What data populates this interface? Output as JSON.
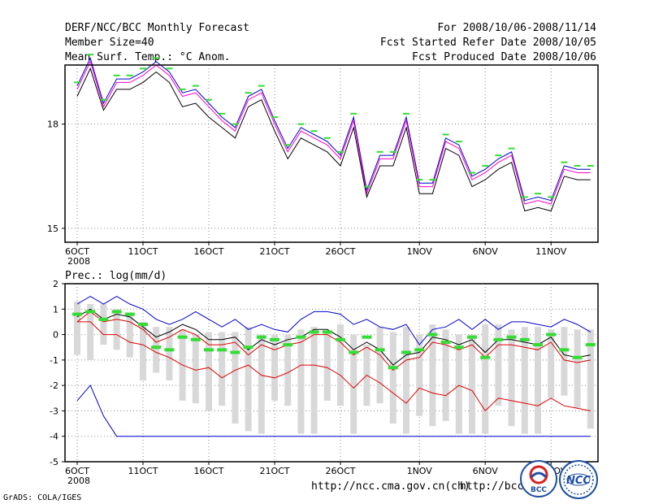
{
  "header": {
    "title": "DERF/NCC/BCC Monthly Forecast",
    "member_size": "Member Size=40",
    "variable": "Mean Surf. Temp.: °C Anom.",
    "period": "For 2008/10/06-2008/11/14",
    "started": "Fcst Started Refer Date 2008/10/05",
    "produced": "Fcst Produced Date 2008/10/06"
  },
  "footer": {
    "url1": "http://ncc.cma.gov.cn(ch)",
    "url2": "http://bcc.c",
    "grads": "GrADS: COLA/IGES",
    "logo_bcc": "BCC",
    "logo_ncc": "NCC"
  },
  "colors": {
    "frame": "#000000",
    "grid": "#888888",
    "green": "#33dd33",
    "red": "#dd0000",
    "blue": "#0000cc",
    "magenta": "#ff00cc",
    "gray": "#d8d8d8"
  },
  "chart_data": [
    {
      "type": "line",
      "title": "Mean Surf. Temp.: °C Anom.",
      "x_tick_labels": [
        "6OCT",
        "11OCT",
        "16OCT",
        "21OCT",
        "26OCT",
        "1NOV",
        "6NOV",
        "11NOV"
      ],
      "x_tick_sublabel": "2008",
      "y_tick_labels": [
        "18",
        "15"
      ],
      "ylim": [
        14.6,
        19.7
      ],
      "x": [
        1,
        2,
        3,
        4,
        5,
        6,
        7,
        8,
        9,
        10,
        11,
        12,
        13,
        14,
        15,
        16,
        17,
        18,
        19,
        20,
        21,
        22,
        23,
        24,
        25,
        26,
        27,
        28,
        29,
        30,
        31,
        32,
        33,
        34,
        35,
        36,
        37,
        38,
        39,
        40
      ],
      "series": [
        {
          "name": "upper",
          "color": "#0000cc",
          "values": [
            19.1,
            19.9,
            18.6,
            19.3,
            19.3,
            19.5,
            19.8,
            19.5,
            18.9,
            19.0,
            18.6,
            18.2,
            17.9,
            18.8,
            19.0,
            18.1,
            17.3,
            17.9,
            17.7,
            17.5,
            17.1,
            18.2,
            16.1,
            17.1,
            17.1,
            18.2,
            16.3,
            16.3,
            17.6,
            17.4,
            16.5,
            16.7,
            17.0,
            17.2,
            15.8,
            15.9,
            15.8,
            16.8,
            16.7,
            16.7
          ]
        },
        {
          "name": "mean",
          "color": "#ff00cc",
          "values": [
            19.0,
            19.8,
            18.5,
            19.2,
            19.2,
            19.4,
            19.7,
            19.4,
            18.8,
            18.9,
            18.5,
            18.1,
            17.8,
            18.7,
            18.9,
            18.0,
            17.2,
            17.8,
            17.6,
            17.4,
            17.0,
            18.1,
            16.0,
            17.0,
            17.0,
            18.1,
            16.2,
            16.2,
            17.5,
            17.3,
            16.4,
            16.6,
            16.9,
            17.1,
            15.7,
            15.8,
            15.7,
            16.7,
            16.6,
            16.6
          ]
        },
        {
          "name": "lower",
          "color": "#000000",
          "values": [
            18.8,
            19.6,
            18.4,
            19.0,
            19.0,
            19.2,
            19.5,
            19.2,
            18.5,
            18.6,
            18.2,
            17.9,
            17.6,
            18.5,
            18.7,
            17.8,
            17.0,
            17.6,
            17.4,
            17.2,
            16.8,
            17.9,
            15.9,
            16.8,
            16.8,
            17.9,
            16.0,
            16.0,
            17.3,
            17.1,
            16.2,
            16.4,
            16.7,
            16.9,
            15.5,
            15.6,
            15.5,
            16.5,
            16.4,
            16.4
          ]
        }
      ],
      "markers": {
        "name": "observed",
        "color": "#33dd33",
        "values": [
          19.2,
          20.0,
          18.7,
          19.4,
          19.4,
          19.6,
          19.9,
          19.6,
          19.0,
          19.1,
          18.7,
          18.3,
          18.0,
          18.9,
          19.1,
          18.2,
          17.4,
          18.0,
          17.8,
          17.6,
          17.2,
          18.3,
          16.2,
          17.2,
          17.2,
          18.3,
          16.4,
          16.4,
          17.7,
          17.5,
          16.6,
          16.8,
          17.1,
          17.3,
          15.9,
          16.0,
          15.9,
          16.9,
          16.8,
          16.8
        ]
      }
    },
    {
      "type": "line",
      "title": "Prec.: log(mm/d)",
      "x_tick_labels": [
        "6OCT",
        "11OCT",
        "16OCT",
        "21OCT",
        "26OCT",
        "1NOV",
        "6NOV",
        "11NOV"
      ],
      "x_tick_sublabel": "2008",
      "y_tick_labels": [
        "2",
        "1",
        "0",
        "-1",
        "-2",
        "-3",
        "-4",
        "-5"
      ],
      "ylim": [
        -5,
        2
      ],
      "x": [
        1,
        2,
        3,
        4,
        5,
        6,
        7,
        8,
        9,
        10,
        11,
        12,
        13,
        14,
        15,
        16,
        17,
        18,
        19,
        20,
        21,
        22,
        23,
        24,
        25,
        26,
        27,
        28,
        29,
        30,
        31,
        32,
        33,
        34,
        35,
        36,
        37,
        38,
        39,
        40
      ],
      "series": [
        {
          "name": "max",
          "color": "#0000cc",
          "values": [
            1.2,
            1.5,
            1.2,
            1.5,
            1.2,
            1.0,
            0.6,
            0.4,
            0.6,
            0.9,
            0.6,
            0.3,
            0.6,
            0.2,
            0.4,
            0.2,
            0.1,
            0.6,
            0.9,
            0.9,
            0.8,
            0.4,
            0.6,
            0.3,
            0.2,
            0.4,
            -0.4,
            0.2,
            0.3,
            0.6,
            0.2,
            0.6,
            0.2,
            0.5,
            0.5,
            0.4,
            0.3,
            0.6,
            0.4,
            0.1
          ]
        },
        {
          "name": "mean",
          "color": "#000000",
          "values": [
            0.7,
            1.0,
            0.6,
            0.8,
            0.7,
            0.3,
            -0.1,
            0.1,
            0.4,
            0.2,
            -0.2,
            -0.2,
            -0.1,
            -0.6,
            -0.2,
            -0.4,
            -0.2,
            -0.1,
            0.2,
            0.2,
            -0.1,
            -0.6,
            -0.3,
            -0.6,
            -1.2,
            -0.8,
            -0.7,
            -0.1,
            -0.2,
            -0.4,
            -0.2,
            -0.7,
            -0.2,
            -0.2,
            -0.3,
            -0.4,
            -0.1,
            -0.8,
            -0.9,
            -0.8
          ]
        },
        {
          "name": "mean_sd",
          "color": "#dd0000",
          "values": [
            0.5,
            0.9,
            0.5,
            0.6,
            0.5,
            0.2,
            -0.3,
            -0.1,
            0.2,
            0.0,
            -0.4,
            -0.4,
            -0.3,
            -0.8,
            -0.4,
            -0.6,
            -0.4,
            -0.3,
            0.0,
            0.0,
            -0.3,
            -0.8,
            -0.5,
            -0.8,
            -1.4,
            -1.0,
            -0.9,
            -0.3,
            -0.4,
            -0.6,
            -0.4,
            -0.9,
            -0.4,
            -0.4,
            -0.5,
            -0.6,
            -0.3,
            -1.0,
            -1.1,
            -1.0
          ]
        },
        {
          "name": "lower",
          "color": "#dd0000",
          "values": [
            0.5,
            0.5,
            0.0,
            0.0,
            -0.3,
            -0.4,
            -0.7,
            -0.9,
            -1.2,
            -1.4,
            -1.3,
            -1.7,
            -1.4,
            -1.2,
            -1.6,
            -1.7,
            -1.5,
            -1.2,
            -1.2,
            -1.3,
            -1.6,
            -2.1,
            -1.6,
            -1.9,
            -2.3,
            -2.7,
            -2.1,
            -2.3,
            -2.4,
            -2.0,
            -2.2,
            -3.0,
            -2.5,
            -2.6,
            -2.7,
            -2.8,
            -2.5,
            -2.8,
            -2.9,
            -3.0
          ]
        },
        {
          "name": "min",
          "color": "#0000cc",
          "values": [
            -2.6,
            -2.0,
            -3.2,
            -4.0,
            -4.0,
            -4.0,
            -4.0,
            -4.0,
            -4.0,
            -4.0,
            -4.0,
            -4.0,
            -4.0,
            -4.0,
            -4.0,
            -4.0,
            -4.0,
            -4.0,
            -4.0,
            -4.0,
            -4.0,
            -4.0,
            -4.0,
            -4.0,
            -4.0,
            -4.0,
            -4.0,
            -4.0,
            -4.0,
            -4.0,
            -4.0,
            -4.0,
            -4.0,
            -4.0,
            -4.0,
            -4.0,
            -4.0,
            -4.0,
            -4.0,
            -4.0
          ]
        }
      ],
      "markers": {
        "name": "observed",
        "color": "#33dd33",
        "values": [
          0.8,
          0.9,
          0.6,
          0.9,
          0.8,
          0.4,
          -0.5,
          -0.6,
          -0.1,
          -0.2,
          -0.6,
          -0.6,
          -0.7,
          -0.5,
          -0.1,
          -0.2,
          -0.4,
          -0.1,
          0.1,
          0.1,
          -0.2,
          -0.7,
          -0.1,
          -0.6,
          -1.3,
          -0.7,
          -0.6,
          0.0,
          -0.3,
          -0.5,
          -0.1,
          -0.9,
          -0.2,
          -0.1,
          -0.2,
          -0.4,
          0.0,
          -0.6,
          -0.9,
          -0.4
        ]
      },
      "ranges": {
        "name": "ensemble_range",
        "color": "#d8d8d8",
        "low": [
          -0.8,
          -1.0,
          -0.4,
          -0.6,
          -0.9,
          -1.8,
          -1.5,
          -1.8,
          -2.6,
          -2.7,
          -3.0,
          -2.8,
          -3.5,
          -3.8,
          -3.9,
          -2.6,
          -2.8,
          -3.9,
          -3.9,
          -2.6,
          -2.8,
          -3.9,
          -2.8,
          -2.7,
          -3.5,
          -3.9,
          -3.2,
          -3.6,
          -3.4,
          -3.9,
          -3.9,
          -3.9,
          -2.8,
          -3.6,
          -3.9,
          -3.9,
          -2.5,
          -2.4,
          -2.9,
          -3.7
        ],
        "high": [
          1.3,
          1.2,
          1.2,
          1.0,
          0.8,
          0.5,
          0.3,
          0.3,
          0.2,
          0.0,
          0.1,
          0.1,
          0.1,
          0.3,
          0.0,
          0.0,
          0.0,
          0.2,
          0.3,
          0.1,
          0.4,
          0.0,
          -0.4,
          0.3,
          0.1,
          0.3,
          0.0,
          0.4,
          0.2,
          0.0,
          0.0,
          0.4,
          0.4,
          0.2,
          0.3,
          0.3,
          0.2,
          0.3,
          0.2,
          0.2
        ]
      }
    }
  ]
}
